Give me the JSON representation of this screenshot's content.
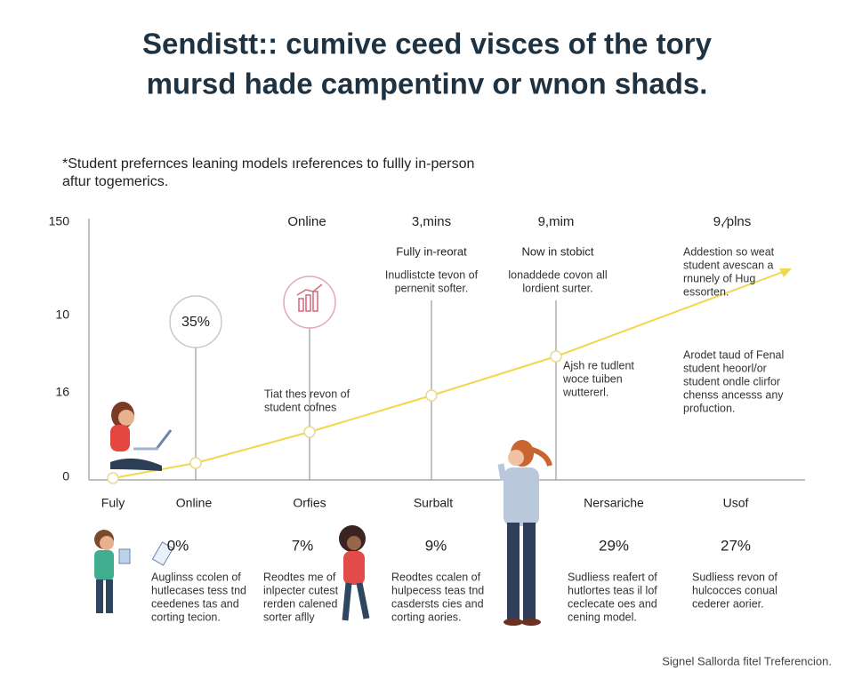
{
  "title": [
    "Sendistt:: cumive ceed visces of the tory",
    "mursd hade campentinv or wnon shads."
  ],
  "subtitle": [
    "*Student prefernces leaning models ıreferences to fullly in-person",
    "aftur togemerics."
  ],
  "y_axis_labels": [
    "150",
    "10",
    "16",
    "0"
  ],
  "top_headers": [
    "Online",
    "3,mins",
    "9,mim",
    "9,⁄plns"
  ],
  "sub_headers": [
    "Fully in-reorat",
    "Now in stobict"
  ],
  "circle_label": "35%",
  "notes": [
    [
      "Inudlistcte tevon of",
      "pernenit softer."
    ],
    [
      "lonaddede covon all",
      "lordient surter."
    ],
    [
      "Addestion so weat",
      "student avescan a",
      "rnunely of Hug",
      "essorten."
    ],
    [
      "Tiat thes revon of",
      "student cofnes"
    ],
    [
      "Ajsh re tudlent",
      "woce tuiben",
      "wuttererl."
    ],
    [
      "Arodet taud of Fenal",
      "student heoorl/or",
      "student ondle clirfor",
      "chenss ancesss any",
      "profuction."
    ]
  ],
  "x_labels": [
    "Fuly",
    "Online",
    "Orfies",
    "Surbalt",
    "Nersariche",
    "Usof"
  ],
  "stats": [
    "0%",
    "7%",
    "9%",
    "29%",
    "27%"
  ],
  "stat_notes": [
    [
      "Auglinss ccolen of",
      "hutlecases tess tnd",
      "ceedenes tas and",
      "corting tecion."
    ],
    [
      "Reodtes me of",
      "inlpecter cutest",
      "rerden calened",
      "sorter aflly"
    ],
    [
      "Reodtes ccalen of",
      "hulpecess teas tnd",
      "casdersts cies and",
      "corting aories."
    ],
    [
      "Sudliess reafert of",
      "hutlortes teas il lof",
      "ceclecate oes and",
      "cening model."
    ],
    [
      "Sudliess revon of",
      "hulcocces conual",
      "cederer aorier."
    ]
  ],
  "footer": "Signel Sallorda fitel Treferencion."
}
